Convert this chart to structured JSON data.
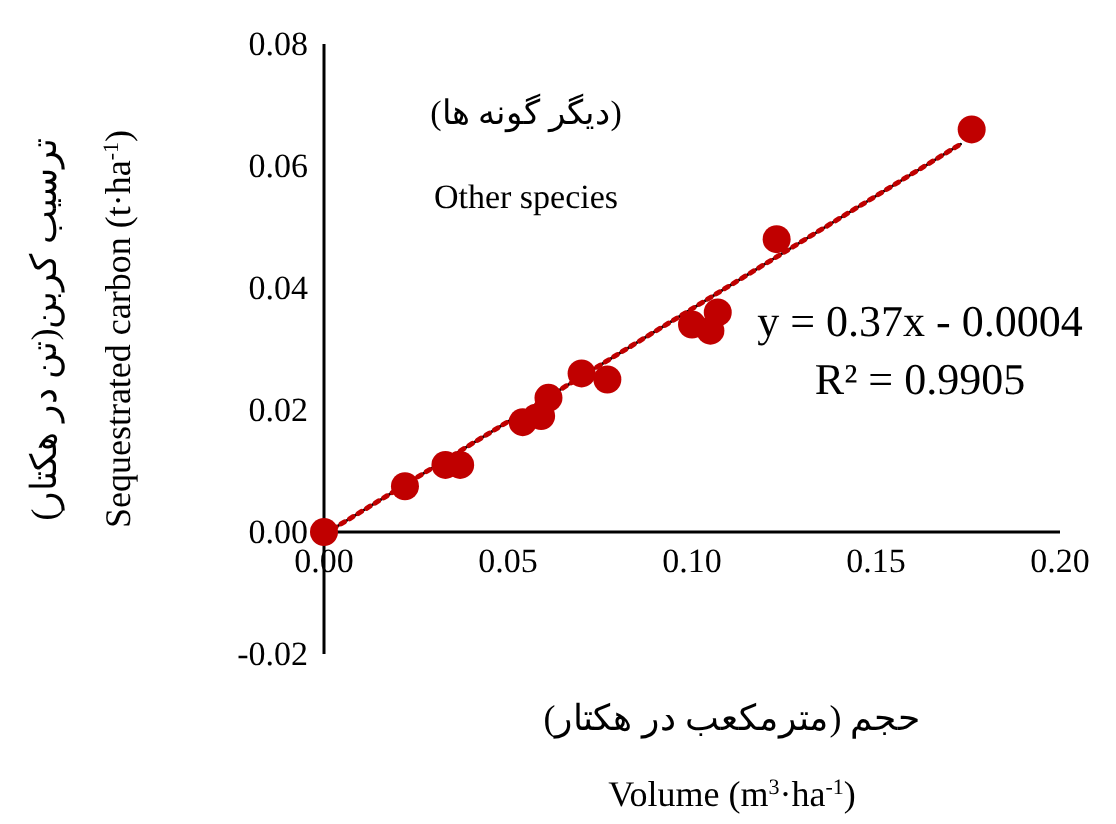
{
  "chart_data": {
    "type": "scatter",
    "xlabel": "حجم (مترمکعب در هکتار)\nVolume (m$^{3}$·ha$^{-1}$)",
    "ylabel": "ترسیب کربن(تن در هکتار)\nSequestrated carbon (t·ha$^{-1}$)",
    "annotations": [
      "(دیگر گونه ها)",
      "Other species",
      "y = 0.37x - 0.0004",
      "R² = 0.9905"
    ],
    "xlim": [
      0,
      0.2
    ],
    "xticks": [
      {
        "value": 0,
        "label": "0.00"
      },
      {
        "value": 0.05,
        "label": "0.05"
      },
      {
        "value": 0.1,
        "label": "0.10"
      },
      {
        "value": 0.15,
        "label": "0.15"
      },
      {
        "value": 0.2,
        "label": "0.20"
      }
    ],
    "ylim": [
      -0.02,
      0.08
    ],
    "yticks": [
      {
        "value": -0.02,
        "label": "-0.02"
      },
      {
        "value": 0,
        "label": "0.00"
      },
      {
        "value": 0.02,
        "label": "0.02"
      },
      {
        "value": 0.04,
        "label": "0.04"
      },
      {
        "value": 0.06,
        "label": "0.06"
      },
      {
        "value": 0.08,
        "label": "0.08"
      }
    ],
    "grid": false,
    "marker": "circle",
    "series": [
      {
        "color": "#c00000",
        "x": [
          0,
          0.022,
          0.033,
          0.037,
          0.054,
          0.059,
          0.061,
          0.07,
          0.077,
          0.1,
          0.105,
          0.107,
          0.123,
          0.176
        ],
        "values": [
          0,
          0.0075,
          0.011,
          0.011,
          0.018,
          0.019,
          0.022,
          0.026,
          0.025,
          0.034,
          0.033,
          0.036,
          0.048,
          0.066
        ]
      },
      {
        "type": "line",
        "marker": "none",
        "color": "#000000",
        "line_style": "solid",
        "x": [
          0,
          0.173
        ],
        "values": [
          -0.0004,
          0.0636
        ]
      },
      {
        "type": "line",
        "marker": "none",
        "color": "#c00000",
        "line_style": "dotted",
        "x": [
          0,
          0.173
        ],
        "values": [
          -0.0004,
          0.0636
        ]
      }
    ]
  }
}
